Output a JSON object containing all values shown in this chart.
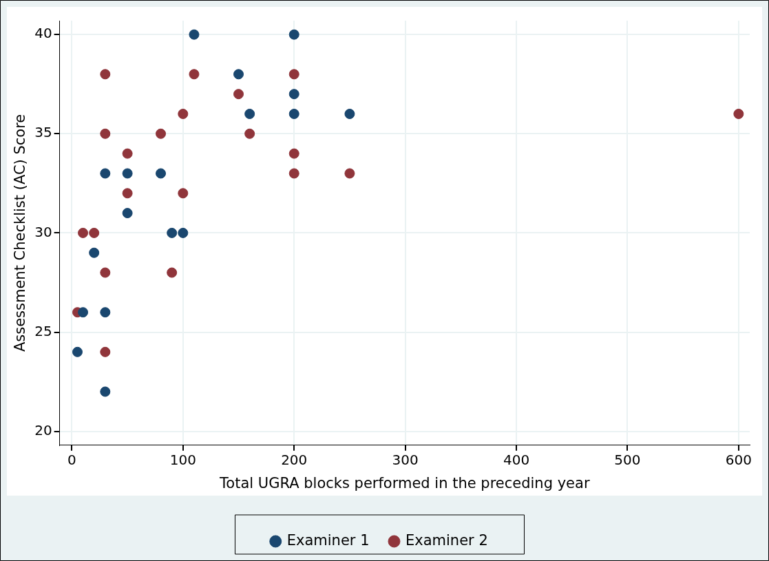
{
  "chart_data": {
    "type": "scatter",
    "xlabel": "Total UGRA blocks performed in the preceding year",
    "ylabel": "Assessment Checklist (AC) Score",
    "xlim": [
      -11,
      610
    ],
    "xticks": [
      0,
      100,
      200,
      300,
      400,
      500,
      600
    ],
    "ylim": [
      19.3,
      40.7
    ],
    "yticks": [
      20,
      25,
      30,
      35,
      40
    ],
    "grid": true,
    "legend": "bottom",
    "marker": "circle",
    "series": [
      {
        "name": "Examiner 1",
        "color": "#1a476f",
        "x": [
          5,
          10,
          20,
          30,
          30,
          30,
          50,
          50,
          80,
          90,
          100,
          110,
          150,
          160,
          200,
          200,
          200,
          250
        ],
        "values": [
          24,
          26,
          29,
          33,
          26,
          22,
          33,
          31,
          33,
          30,
          30,
          40,
          38,
          36,
          40,
          37,
          36,
          36
        ]
      },
      {
        "name": "Examiner 2",
        "color": "#90353b",
        "x": [
          5,
          10,
          20,
          30,
          30,
          30,
          30,
          50,
          50,
          80,
          90,
          100,
          100,
          110,
          150,
          160,
          200,
          200,
          200,
          250,
          600
        ],
        "values": [
          26,
          30,
          30,
          38,
          35,
          28,
          24,
          34,
          32,
          35,
          28,
          36,
          32,
          38,
          37,
          35,
          38,
          34,
          33,
          33,
          36
        ]
      }
    ]
  }
}
